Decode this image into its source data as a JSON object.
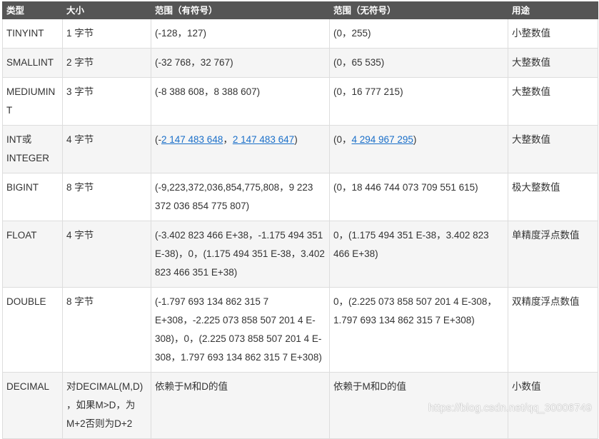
{
  "table": {
    "headers": [
      "类型",
      "大小",
      "范围（有符号）",
      "范围（无符号）",
      "用途"
    ],
    "rows": [
      {
        "type": "TINYINT",
        "size": "1 字节",
        "signed_range": "(-128，127)",
        "unsigned_range": "(0，255)",
        "use": "小整数值"
      },
      {
        "type": "SMALLINT",
        "size": "2 字节",
        "signed_range": "(-32 768，32 767)",
        "unsigned_range": "(0，65 535)",
        "use": "大整数值"
      },
      {
        "type": "MEDIUMINT",
        "size": "3 字节",
        "signed_range": "(-8 388 608，8 388 607)",
        "unsigned_range": "(0，16 777 215)",
        "use": "大整数值"
      },
      {
        "type": "INT或INTEGER",
        "size": "4 字节",
        "signed_prefix": "(-",
        "signed_link1": "2 147 483 648",
        "signed_sep": "，",
        "signed_link2": "2 147 483 647",
        "signed_suffix": ")",
        "unsigned_prefix": "(0，",
        "unsigned_link": "4 294 967 295",
        "unsigned_suffix": ")",
        "use": "大整数值"
      },
      {
        "type": "BIGINT",
        "size": "8 字节",
        "signed_range": "(-9,223,372,036,854,775,808，9 223 372 036 854 775 807)",
        "unsigned_range": "(0，18 446 744 073 709 551 615)",
        "use": "极大整数值"
      },
      {
        "type": "FLOAT",
        "size": "4 字节",
        "signed_range": "(-3.402 823 466 E+38，-1.175 494 351 E-38)，0，(1.175 494 351 E-38，3.402 823 466 351 E+38)",
        "unsigned_range": "0，(1.175 494 351 E-38，3.402 823 466 E+38)",
        "use": "单精度浮点数值"
      },
      {
        "type": "DOUBLE",
        "size": "8 字节",
        "signed_range": "(-1.797 693 134 862 315 7 E+308，-2.225 073 858 507 201 4 E-308)，0，(2.225 073 858 507 201 4 E-308，1.797 693 134 862 315 7 E+308)",
        "unsigned_range": "0，(2.225 073 858 507 201 4 E-308，1.797 693 134 862 315 7 E+308)",
        "use": "双精度浮点数值"
      },
      {
        "type": "DECIMAL",
        "size": "对DECIMAL(M,D) ，如果M>D，为M+2否则为D+2",
        "signed_range": "依赖于M和D的值",
        "unsigned_range": "依赖于M和D的值",
        "use": "小数值"
      }
    ]
  },
  "watermark": "https://blog.csdn.net/qq_30006749"
}
